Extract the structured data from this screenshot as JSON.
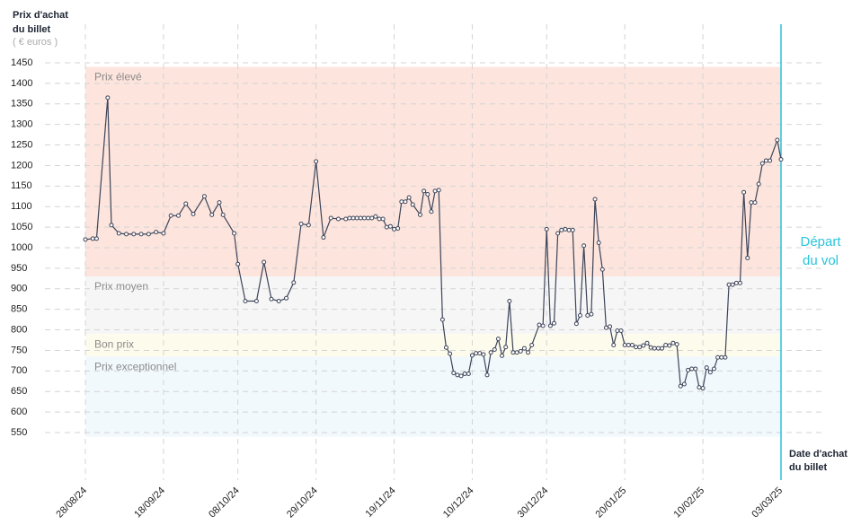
{
  "chart_data": {
    "type": "line",
    "y_label": [
      "Prix d'achat",
      "du billet"
    ],
    "y_unit": "( € euros )",
    "x_label": [
      "Date d'achat",
      "du billet"
    ],
    "annotation": [
      "Départ",
      "du vol"
    ],
    "annotation_x": "03/03/25",
    "annotation_color": "#29c4dc",
    "color": "#3d4459",
    "grid": true,
    "xlim": [
      "28/08/24",
      "03/03/25"
    ],
    "xticks": [
      "28/08/24",
      "18/09/24",
      "08/10/24",
      "29/10/24",
      "19/11/24",
      "10/12/24",
      "30/12/24",
      "20/01/25",
      "10/02/25",
      "03/03/25"
    ],
    "ylim": [
      550,
      1450
    ],
    "yticks": [
      550,
      600,
      650,
      700,
      750,
      800,
      850,
      900,
      950,
      1000,
      1050,
      1100,
      1150,
      1200,
      1250,
      1300,
      1350,
      1400,
      1450
    ],
    "zones": [
      {
        "name": "Prix élevé",
        "color": "#fde4dc",
        "range": [
          930,
          1440
        ]
      },
      {
        "name": "Prix moyen",
        "color": "#f6f6f6",
        "range": [
          790,
          930
        ]
      },
      {
        "name": "Bon prix",
        "color": "#fdfbec",
        "range": [
          735,
          790
        ]
      },
      {
        "name": "Prix exceptionnel",
        "color": "#f1f9fd",
        "range": [
          540,
          735
        ]
      }
    ],
    "x": [
      "28/08/24",
      "30/08/24",
      "31/08/24",
      "03/09/24",
      "04/09/24",
      "06/09/24",
      "08/09/24",
      "10/09/24",
      "12/09/24",
      "14/09/24",
      "16/09/24",
      "18/09/24",
      "20/09/24",
      "22/09/24",
      "24/09/24",
      "26/09/24",
      "29/09/24",
      "01/10/24",
      "03/10/24",
      "04/10/24",
      "07/10/24",
      "08/10/24",
      "10/10/24",
      "13/10/24",
      "15/10/24",
      "17/10/24",
      "19/10/24",
      "21/10/24",
      "23/10/24",
      "25/10/24",
      "27/10/24",
      "29/10/24",
      "31/10/24",
      "02/11/24",
      "04/11/24",
      "06/11/24",
      "07/11/24",
      "08/11/24",
      "09/11/24",
      "10/11/24",
      "11/11/24",
      "12/11/24",
      "13/11/24",
      "14/11/24",
      "15/11/24",
      "16/11/24",
      "17/11/24",
      "18/11/24",
      "19/11/24",
      "20/11/24",
      "21/11/24",
      "22/11/24",
      "23/11/24",
      "24/11/24",
      "26/11/24",
      "27/11/24",
      "28/11/24",
      "29/11/24",
      "30/11/24",
      "01/12/24",
      "02/12/24",
      "03/12/24",
      "04/12/24",
      "05/12/24",
      "06/12/24",
      "07/12/24",
      "08/12/24",
      "09/12/24",
      "10/12/24",
      "11/12/24",
      "12/12/24",
      "13/12/24",
      "14/12/24",
      "15/12/24",
      "16/12/24",
      "17/12/24",
      "18/12/24",
      "19/12/24",
      "20/12/24",
      "21/12/24",
      "22/12/24",
      "23/12/24",
      "24/12/24",
      "25/12/24",
      "26/12/24",
      "28/12/24",
      "29/12/24",
      "30/12/24",
      "31/12/24",
      "01/01/25",
      "02/01/25",
      "03/01/25",
      "04/01/25",
      "05/01/25",
      "06/01/25",
      "07/01/25",
      "08/01/25",
      "09/01/25",
      "10/01/25",
      "11/01/25",
      "12/01/25",
      "13/01/25",
      "14/01/25",
      "15/01/25",
      "16/01/25",
      "17/01/25",
      "18/01/25",
      "19/01/25",
      "20/01/25",
      "21/01/25",
      "22/01/25",
      "23/01/25",
      "24/01/25",
      "25/01/25",
      "26/01/25",
      "27/01/25",
      "28/01/25",
      "29/01/25",
      "30/01/25",
      "31/01/25",
      "01/02/25",
      "02/02/25",
      "03/02/25",
      "04/02/25",
      "05/02/25",
      "06/02/25",
      "07/02/25",
      "08/02/25",
      "09/02/25",
      "10/02/25",
      "11/02/25",
      "12/02/25",
      "13/02/25",
      "14/02/25",
      "15/02/25",
      "16/02/25",
      "17/02/25",
      "18/02/25",
      "19/02/25",
      "20/02/25",
      "21/02/25",
      "22/02/25",
      "23/02/25",
      "24/02/25",
      "25/02/25",
      "26/02/25",
      "27/02/25",
      "28/02/25",
      "02/03/25",
      "03/03/25"
    ],
    "values": [
      1020,
      1022,
      1022,
      1365,
      1055,
      1035,
      1033,
      1033,
      1033,
      1033,
      1038,
      1035,
      1078,
      1078,
      1107,
      1082,
      1125,
      1080,
      1110,
      1080,
      1035,
      960,
      870,
      870,
      965,
      875,
      870,
      877,
      915,
      1058,
      1055,
      1210,
      1025,
      1072,
      1070,
      1070,
      1072,
      1072,
      1072,
      1072,
      1072,
      1072,
      1072,
      1076,
      1070,
      1070,
      1050,
      1052,
      1045,
      1047,
      1112,
      1112,
      1122,
      1105,
      1080,
      1138,
      1130,
      1088,
      1138,
      1140,
      825,
      757,
      742,
      695,
      690,
      688,
      693,
      693,
      738,
      743,
      743,
      740,
      690,
      745,
      752,
      778,
      737,
      758,
      870,
      745,
      745,
      748,
      755,
      745,
      763,
      812,
      810,
      1045,
      810,
      816,
      1035,
      1043,
      1045,
      1043,
      1043,
      815,
      835,
      1005,
      835,
      838,
      1118,
      1012,
      947,
      805,
      808,
      763,
      798,
      798,
      763,
      763,
      763,
      758,
      758,
      762,
      768,
      757,
      755,
      755,
      755,
      763,
      762,
      768,
      765,
      663,
      668,
      702,
      705,
      705,
      660,
      658,
      708,
      697,
      705,
      733,
      733,
      733,
      910,
      910,
      914,
      914,
      1135,
      975,
      1110,
      1110,
      1155,
      1205,
      1212,
      1212,
      1262,
      1215
    ]
  }
}
